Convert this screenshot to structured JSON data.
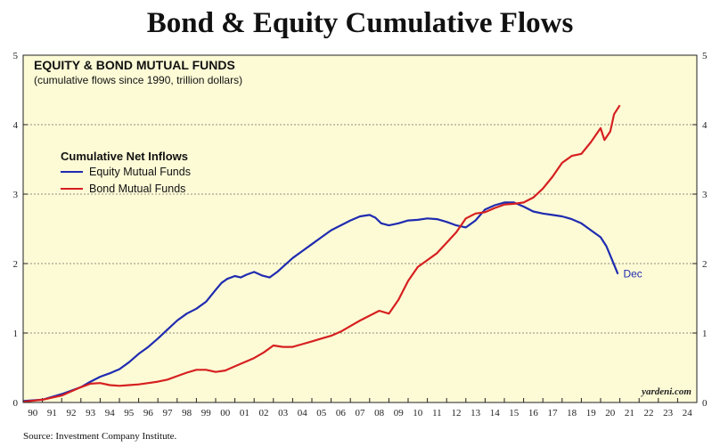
{
  "title": "Bond & Equity Cumulative Flows",
  "source": "Source: Investment Company Institute.",
  "chart_data": {
    "type": "line",
    "heading": "EQUITY & BOND MUTUAL FUNDS",
    "subheading": "(cumulative flows since 1990, trillion dollars)",
    "legend_title": "Cumulative Net Inflows",
    "credit": "yardeni.com",
    "background": "#fdfbd6",
    "xlim": [
      1990,
      2025
    ],
    "ylim": [
      0,
      5
    ],
    "yticks": [
      0,
      1,
      2,
      3,
      4,
      5
    ],
    "xticks": [
      {
        "year": 1990,
        "label": "90"
      },
      {
        "year": 1991,
        "label": "91"
      },
      {
        "year": 1992,
        "label": "92"
      },
      {
        "year": 1993,
        "label": "93"
      },
      {
        "year": 1994,
        "label": "94"
      },
      {
        "year": 1995,
        "label": "95"
      },
      {
        "year": 1996,
        "label": "96"
      },
      {
        "year": 1997,
        "label": "97"
      },
      {
        "year": 1998,
        "label": "98"
      },
      {
        "year": 1999,
        "label": "99"
      },
      {
        "year": 2000,
        "label": "00"
      },
      {
        "year": 2001,
        "label": "01"
      },
      {
        "year": 2002,
        "label": "02"
      },
      {
        "year": 2003,
        "label": "03"
      },
      {
        "year": 2004,
        "label": "04"
      },
      {
        "year": 2005,
        "label": "05"
      },
      {
        "year": 2006,
        "label": "06"
      },
      {
        "year": 2007,
        "label": "07"
      },
      {
        "year": 2008,
        "label": "08"
      },
      {
        "year": 2009,
        "label": "09"
      },
      {
        "year": 2010,
        "label": "10"
      },
      {
        "year": 2011,
        "label": "11"
      },
      {
        "year": 2012,
        "label": "12"
      },
      {
        "year": 2013,
        "label": "13"
      },
      {
        "year": 2014,
        "label": "14"
      },
      {
        "year": 2015,
        "label": "15"
      },
      {
        "year": 2016,
        "label": "16"
      },
      {
        "year": 2017,
        "label": "17"
      },
      {
        "year": 2018,
        "label": "18"
      },
      {
        "year": 2019,
        "label": "19"
      },
      {
        "year": 2020,
        "label": "20"
      },
      {
        "year": 2021,
        "label": "21"
      },
      {
        "year": 2022,
        "label": "22"
      },
      {
        "year": 2023,
        "label": "23"
      },
      {
        "year": 2024,
        "label": "24"
      }
    ],
    "series": [
      {
        "name": "Equity Mutual Funds",
        "color": "#1f2bb0",
        "end_label": "Dec",
        "x": [
          1990.0,
          1991.0,
          1992.0,
          1993.0,
          1993.5,
          1994.0,
          1994.5,
          1995.0,
          1995.5,
          1996.0,
          1996.5,
          1997.0,
          1997.5,
          1998.0,
          1998.5,
          1999.0,
          1999.5,
          2000.0,
          2000.3,
          2000.6,
          2001.0,
          2001.3,
          2001.6,
          2002.0,
          2002.4,
          2002.8,
          2003.2,
          2003.6,
          2004.0,
          2004.5,
          2005.0,
          2005.5,
          2006.0,
          2006.5,
          2007.0,
          2007.5,
          2008.0,
          2008.3,
          2008.6,
          2009.0,
          2009.5,
          2010.0,
          2010.5,
          2011.0,
          2011.5,
          2012.0,
          2012.5,
          2013.0,
          2013.5,
          2014.0,
          2014.5,
          2015.0,
          2015.5,
          2016.0,
          2016.5,
          2017.0,
          2017.5,
          2018.0,
          2018.5,
          2019.0,
          2019.5,
          2020.0,
          2020.3,
          2020.6,
          2020.9
        ],
        "values": [
          0.02,
          0.04,
          0.12,
          0.22,
          0.3,
          0.37,
          0.42,
          0.48,
          0.58,
          0.7,
          0.8,
          0.92,
          1.05,
          1.18,
          1.28,
          1.35,
          1.45,
          1.62,
          1.72,
          1.78,
          1.82,
          1.8,
          1.84,
          1.88,
          1.83,
          1.8,
          1.88,
          1.98,
          2.08,
          2.18,
          2.28,
          2.38,
          2.48,
          2.55,
          2.62,
          2.68,
          2.7,
          2.66,
          2.58,
          2.55,
          2.58,
          2.62,
          2.63,
          2.65,
          2.64,
          2.6,
          2.55,
          2.52,
          2.62,
          2.78,
          2.84,
          2.88,
          2.88,
          2.82,
          2.75,
          2.72,
          2.7,
          2.68,
          2.64,
          2.58,
          2.48,
          2.38,
          2.25,
          2.05,
          1.85
        ]
      },
      {
        "name": "Bond Mutual Funds",
        "color": "#d62020",
        "x": [
          1990.0,
          1991.0,
          1992.0,
          1993.0,
          1993.5,
          1994.0,
          1994.5,
          1995.0,
          1995.5,
          1996.0,
          1996.5,
          1997.0,
          1997.5,
          1998.0,
          1998.5,
          1999.0,
          1999.5,
          2000.0,
          2000.5,
          2001.0,
          2001.5,
          2002.0,
          2002.5,
          2003.0,
          2003.5,
          2004.0,
          2004.5,
          2005.0,
          2005.5,
          2006.0,
          2006.5,
          2007.0,
          2007.5,
          2008.0,
          2008.5,
          2009.0,
          2009.5,
          2010.0,
          2010.5,
          2011.0,
          2011.5,
          2012.0,
          2012.5,
          2013.0,
          2013.5,
          2014.0,
          2014.5,
          2015.0,
          2015.5,
          2016.0,
          2016.5,
          2017.0,
          2017.5,
          2018.0,
          2018.5,
          2019.0,
          2019.5,
          2020.0,
          2020.2,
          2020.5,
          2020.7,
          2021.0
        ],
        "values": [
          0.01,
          0.04,
          0.1,
          0.22,
          0.27,
          0.28,
          0.25,
          0.24,
          0.25,
          0.26,
          0.28,
          0.3,
          0.33,
          0.38,
          0.43,
          0.47,
          0.47,
          0.44,
          0.46,
          0.52,
          0.58,
          0.64,
          0.72,
          0.82,
          0.8,
          0.8,
          0.84,
          0.88,
          0.92,
          0.96,
          1.02,
          1.1,
          1.18,
          1.25,
          1.32,
          1.28,
          1.48,
          1.75,
          1.95,
          2.05,
          2.15,
          2.3,
          2.45,
          2.65,
          2.72,
          2.74,
          2.8,
          2.85,
          2.86,
          2.88,
          2.95,
          3.08,
          3.25,
          3.45,
          3.55,
          3.58,
          3.75,
          3.95,
          3.78,
          3.9,
          4.15,
          4.28
        ]
      }
    ]
  }
}
